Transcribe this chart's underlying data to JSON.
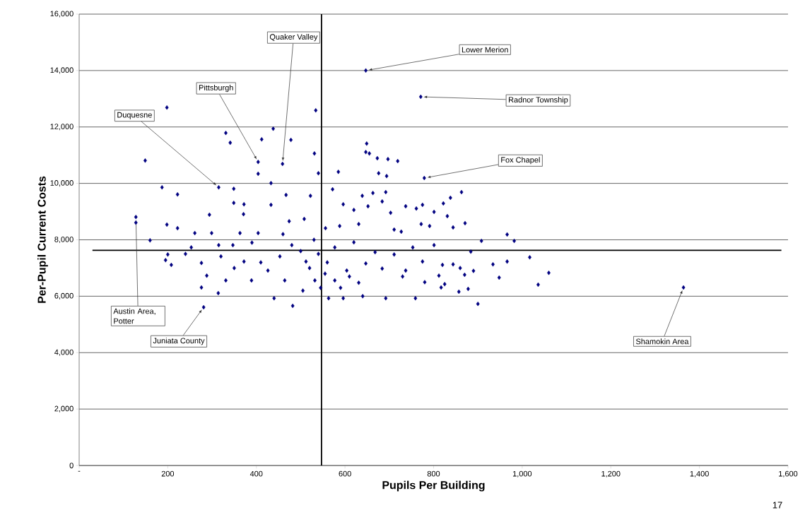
{
  "chart_data": {
    "type": "scatter",
    "xlabel": "Pupils Per Building",
    "ylabel": "Per-Pupil Current Costs",
    "x": [
      647,
      771,
      534,
      649,
      647,
      655,
      673,
      697,
      719,
      676,
      694,
      779,
      585,
      531,
      540,
      572,
      639,
      663,
      692,
      684,
      596,
      620,
      652,
      703,
      737,
      761,
      775,
      801,
      822,
      838,
      863,
      831,
      871,
      772,
      791,
      711,
      844,
      966,
      982,
      908,
      884,
      1017,
      966,
      934,
      1060,
      948,
      1036,
      870,
      844,
      820,
      812,
      825,
      817,
      857,
      878,
      900,
      759,
      692,
      563,
      596,
      727,
      801,
      775,
      737,
      684,
      647,
      604,
      577,
      631,
      668,
      620,
      577,
      556,
      588,
      631,
      711,
      753,
      198,
      149,
      331,
      341,
      438,
      412,
      478,
      404,
      404,
      459,
      433,
      315,
      349,
      187,
      222,
      467,
      522,
      349,
      372,
      371,
      433,
      128,
      128,
      198,
      222,
      160,
      195,
      208,
      200,
      294,
      261,
      253,
      276,
      288,
      276,
      314,
      281,
      320,
      331,
      363,
      372,
      404,
      426,
      440,
      482,
      474,
      508,
      480,
      453,
      512,
      532,
      464,
      389,
      347,
      299,
      315,
      1364,
      540,
      520,
      560,
      500,
      530,
      555,
      545,
      505,
      410,
      390,
      350,
      240,
      460,
      590,
      610,
      640,
      730,
      780,
      860,
      890
    ],
    "values": [
      14000,
      13070,
      12590,
      11410,
      11110,
      11060,
      10890,
      10860,
      10790,
      10360,
      10260,
      10190,
      10410,
      11060,
      10360,
      9790,
      9560,
      9660,
      9690,
      9360,
      9260,
      9060,
      9190,
      8960,
      9190,
      9110,
      9240,
      8990,
      9290,
      9490,
      9690,
      8840,
      8590,
      8560,
      8490,
      8360,
      8440,
      8190,
      7960,
      7960,
      7580,
      7380,
      7230,
      7130,
      6830,
      6660,
      6410,
      6760,
      7130,
      7110,
      6730,
      6430,
      6310,
      6160,
      6260,
      5730,
      5930,
      5930,
      5930,
      5930,
      8290,
      7810,
      7230,
      6910,
      6980,
      7160,
      6910,
      6560,
      6480,
      7560,
      7910,
      7730,
      8410,
      8490,
      8560,
      7480,
      7730,
      12690,
      10810,
      11790,
      11440,
      11940,
      11560,
      11540,
      10760,
      10340,
      10690,
      10010,
      9860,
      9810,
      9860,
      9610,
      9590,
      9560,
      9310,
      9260,
      8910,
      9240,
      8810,
      8610,
      8540,
      8410,
      7980,
      7280,
      7110,
      7480,
      8890,
      8240,
      7730,
      7180,
      6730,
      6310,
      6110,
      5610,
      7410,
      6560,
      8240,
      7230,
      8240,
      6910,
      5930,
      5660,
      8660,
      8740,
      7810,
      7410,
      7230,
      6560,
      6560,
      6560,
      7810,
      8240,
      7810,
      6310,
      7500,
      7000,
      7200,
      7600,
      8000,
      6800,
      6300,
      6200,
      7200,
      7900,
      7000,
      7500,
      8200,
      6300,
      6700,
      6000,
      6700,
      6500,
      7000,
      6900
    ],
    "color": "#000080",
    "marker": "diamond",
    "xlim": [
      0,
      1600
    ],
    "ylim": [
      0,
      16000
    ],
    "xticks": [
      {
        "value": 0,
        "label": "-"
      },
      200,
      400,
      600,
      800,
      {
        "value": 1000,
        "label": "1,000"
      },
      {
        "value": 1200,
        "label": "1,200"
      },
      {
        "value": 1400,
        "label": "1,400"
      },
      {
        "value": 1600,
        "label": "1,600"
      }
    ],
    "yticks": [
      0,
      {
        "value": 2000,
        "label": "2,000"
      },
      {
        "value": 4000,
        "label": "4,000"
      },
      {
        "value": 6000,
        "label": "6,000"
      },
      {
        "value": 8000,
        "label": "8,000"
      },
      {
        "value": 10000,
        "label": "10,000"
      },
      {
        "value": 12000,
        "label": "12,000"
      },
      {
        "value": 14000,
        "label": "14,000"
      },
      {
        "value": 16000,
        "label": "16,000"
      }
    ],
    "grid": "y",
    "ref_lines": [
      {
        "axis": "x",
        "value": 547,
        "color": "#000000"
      },
      {
        "axis": "y",
        "value": 7625,
        "color": "#000000"
      }
    ],
    "annotations": [
      {
        "text": "Quaker Valley",
        "x": 459,
        "y": 10690
      },
      {
        "text": "Lower Merion",
        "x": 647,
        "y": 14000
      },
      {
        "text": "Pittsburgh",
        "x": 404,
        "y": 10760
      },
      {
        "text": "Radnor Township",
        "x": 771,
        "y": 13070
      },
      {
        "text": "Duquesne",
        "x": 315,
        "y": 9860
      },
      {
        "text": "Fox Chapel",
        "x": 779,
        "y": 10190
      },
      {
        "text": "Austin Area, Potter",
        "x": 128,
        "y": 8810
      },
      {
        "text": "Juniata County",
        "x": 281,
        "y": 5610
      },
      {
        "text": "Shamokin Area",
        "x": 1364,
        "y": 6310
      },
      "17"
    ]
  }
}
